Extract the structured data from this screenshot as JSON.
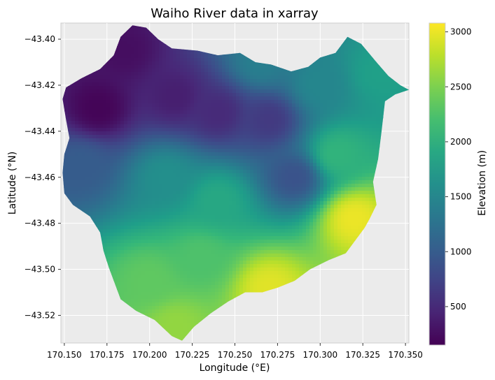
{
  "chart_data": {
    "type": "heatmap",
    "title": "Waiho River data in xarray",
    "xlabel": "Longitude (°E)",
    "ylabel": "Latitude (°N)",
    "xlim": [
      170.148,
      170.352
    ],
    "ylim": [
      -43.532,
      -43.393
    ],
    "xticks": [
      170.15,
      170.175,
      170.2,
      170.225,
      170.25,
      170.275,
      170.3,
      170.325,
      170.35
    ],
    "xtick_labels": [
      "170.150",
      "170.175",
      "170.200",
      "170.225",
      "170.250",
      "170.275",
      "170.300",
      "170.325",
      "170.350"
    ],
    "yticks": [
      -43.4,
      -43.42,
      -43.44,
      -43.46,
      -43.48,
      -43.5,
      -43.52
    ],
    "ytick_labels": [
      "−43.40",
      "−43.42",
      "−43.44",
      "−43.46",
      "−43.48",
      "−43.50",
      "−43.52"
    ],
    "colormap": "viridis",
    "colorbar": {
      "label": "Elevation (m)",
      "range": [
        150,
        3080
      ],
      "ticks": [
        500,
        1000,
        1500,
        2000,
        2500,
        3000
      ],
      "tick_labels": [
        "500",
        "1000",
        "1500",
        "2000",
        "2500",
        "3000"
      ]
    },
    "basin_outline": [
      [
        170.19,
        -43.394
      ],
      [
        170.198,
        -43.395
      ],
      [
        170.205,
        -43.4
      ],
      [
        170.213,
        -43.404
      ],
      [
        170.228,
        -43.405
      ],
      [
        170.24,
        -43.407
      ],
      [
        170.253,
        -43.406
      ],
      [
        170.262,
        -43.41
      ],
      [
        170.271,
        -43.411
      ],
      [
        170.283,
        -43.414
      ],
      [
        170.293,
        -43.412
      ],
      [
        170.3,
        -43.408
      ],
      [
        170.309,
        -43.406
      ],
      [
        170.316,
        -43.399
      ],
      [
        170.324,
        -43.402
      ],
      [
        170.333,
        -43.41
      ],
      [
        170.34,
        -43.416
      ],
      [
        170.347,
        -43.42
      ],
      [
        170.352,
        -43.422
      ],
      [
        170.344,
        -43.424
      ],
      [
        170.338,
        -43.427
      ],
      [
        170.336,
        -43.44
      ],
      [
        170.334,
        -43.452
      ],
      [
        170.331,
        -43.462
      ],
      [
        170.333,
        -43.472
      ],
      [
        170.329,
        -43.478
      ],
      [
        170.326,
        -43.482
      ],
      [
        170.321,
        -43.487
      ],
      [
        170.315,
        -43.493
      ],
      [
        170.305,
        -43.496
      ],
      [
        170.294,
        -43.5
      ],
      [
        170.285,
        -43.505
      ],
      [
        170.275,
        -43.508
      ],
      [
        170.266,
        -43.51
      ],
      [
        170.256,
        -43.51
      ],
      [
        170.246,
        -43.514
      ],
      [
        170.236,
        -43.519
      ],
      [
        170.226,
        -43.525
      ],
      [
        170.219,
        -43.531
      ],
      [
        170.213,
        -43.529
      ],
      [
        170.203,
        -43.522
      ],
      [
        170.192,
        -43.518
      ],
      [
        170.183,
        -43.513
      ],
      [
        170.179,
        -43.505
      ],
      [
        170.176,
        -43.499
      ],
      [
        170.173,
        -43.492
      ],
      [
        170.171,
        -43.484
      ],
      [
        170.165,
        -43.477
      ],
      [
        170.155,
        -43.472
      ],
      [
        170.15,
        -43.467
      ],
      [
        170.149,
        -43.458
      ],
      [
        170.15,
        -43.45
      ],
      [
        170.153,
        -43.443
      ],
      [
        170.151,
        -43.435
      ],
      [
        170.149,
        -43.426
      ],
      [
        170.151,
        -43.421
      ],
      [
        170.16,
        -43.417
      ],
      [
        170.171,
        -43.413
      ],
      [
        170.179,
        -43.407
      ],
      [
        170.183,
        -43.399
      ]
    ],
    "elevation_anchors": [
      {
        "lon": 170.17,
        "lat": -43.43,
        "elev": 180
      },
      {
        "lon": 170.185,
        "lat": -43.405,
        "elev": 260
      },
      {
        "lon": 170.215,
        "lat": -43.425,
        "elev": 400
      },
      {
        "lon": 170.24,
        "lat": -43.432,
        "elev": 500
      },
      {
        "lon": 170.27,
        "lat": -43.435,
        "elev": 650
      },
      {
        "lon": 170.285,
        "lat": -43.46,
        "elev": 900
      },
      {
        "lon": 170.16,
        "lat": -43.455,
        "elev": 1000
      },
      {
        "lon": 170.3,
        "lat": -43.42,
        "elev": 1500
      },
      {
        "lon": 170.335,
        "lat": -43.415,
        "elev": 1800
      },
      {
        "lon": 170.265,
        "lat": -43.41,
        "elev": 1400
      },
      {
        "lon": 170.21,
        "lat": -43.46,
        "elev": 1600
      },
      {
        "lon": 170.24,
        "lat": -43.47,
        "elev": 1900
      },
      {
        "lon": 170.31,
        "lat": -43.45,
        "elev": 2050
      },
      {
        "lon": 170.32,
        "lat": -43.478,
        "elev": 3000
      },
      {
        "lon": 170.27,
        "lat": -43.508,
        "elev": 2950
      },
      {
        "lon": 170.215,
        "lat": -43.525,
        "elev": 2600
      },
      {
        "lon": 170.2,
        "lat": -43.505,
        "elev": 2350
      },
      {
        "lon": 170.23,
        "lat": -43.495,
        "elev": 2250
      }
    ]
  }
}
